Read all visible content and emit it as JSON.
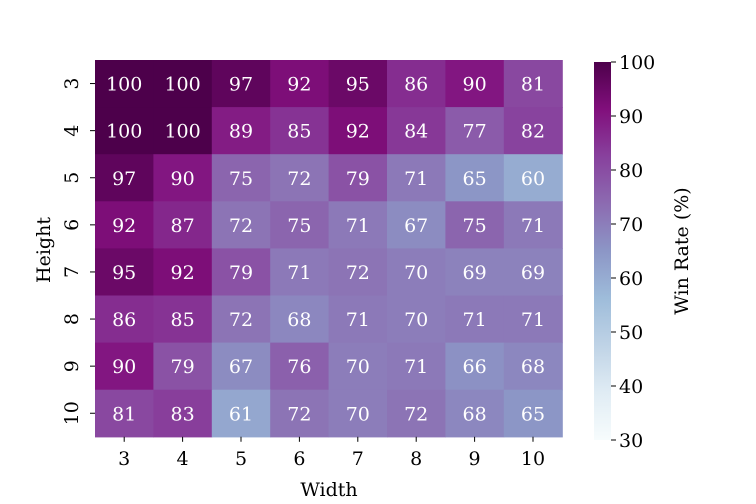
{
  "chart_data": {
    "type": "heatmap",
    "title": "",
    "xlabel": "Width",
    "ylabel": "Height",
    "x_categories": [
      "3",
      "4",
      "5",
      "6",
      "7",
      "8",
      "9",
      "10"
    ],
    "y_categories": [
      "3",
      "4",
      "5",
      "6",
      "7",
      "8",
      "9",
      "10"
    ],
    "values": [
      [
        100,
        100,
        97,
        92,
        95,
        86,
        90,
        81
      ],
      [
        100,
        100,
        89,
        85,
        92,
        84,
        77,
        82
      ],
      [
        97,
        90,
        75,
        72,
        79,
        71,
        65,
        60
      ],
      [
        92,
        87,
        72,
        75,
        71,
        67,
        75,
        71
      ],
      [
        95,
        92,
        79,
        71,
        72,
        70,
        69,
        69
      ],
      [
        86,
        85,
        72,
        68,
        71,
        70,
        71,
        71
      ],
      [
        90,
        79,
        67,
        76,
        70,
        71,
        66,
        68
      ],
      [
        81,
        83,
        61,
        72,
        70,
        72,
        68,
        65
      ]
    ],
    "colorbar": {
      "label": "Win Rate (%)",
      "range": [
        30,
        100
      ],
      "ticks": [
        "30",
        "40",
        "50",
        "60",
        "70",
        "80",
        "90",
        "100"
      ],
      "colormap": "BuPu"
    },
    "annotation_color": "#ffffff",
    "grid": false
  }
}
